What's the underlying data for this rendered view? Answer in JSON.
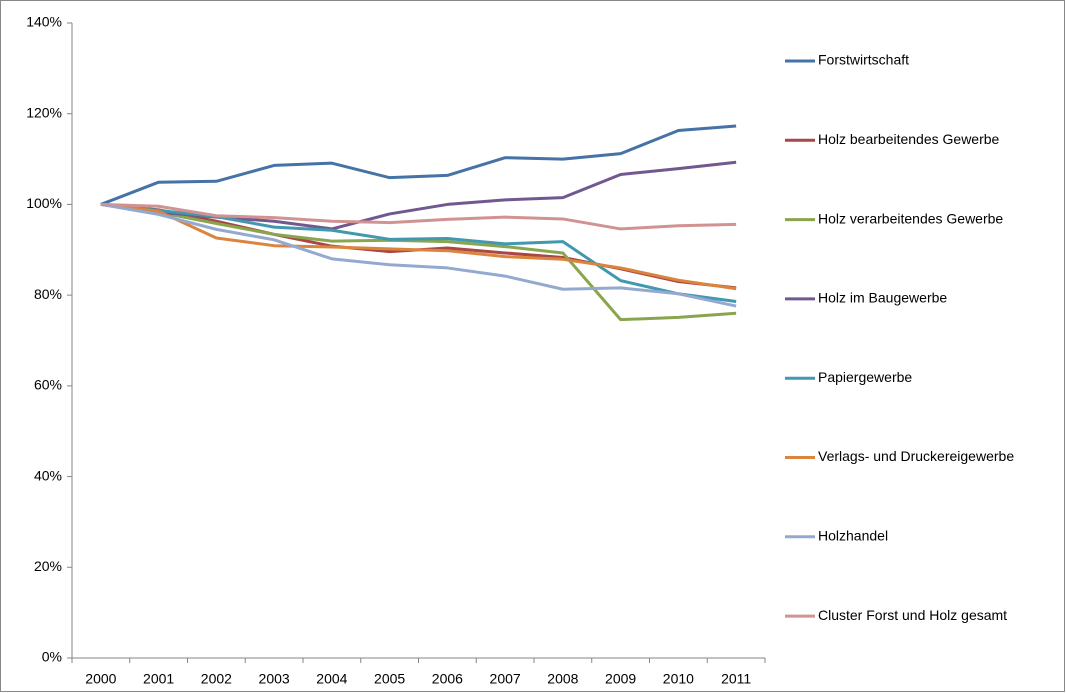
{
  "chart_data": {
    "type": "line",
    "categories": [
      "2000",
      "2001",
      "2002",
      "2003",
      "2004",
      "2005",
      "2006",
      "2007",
      "2008",
      "2009",
      "2010",
      "2011"
    ],
    "series": [
      {
        "name": "Forstwirtschaft",
        "color": "#4572A7",
        "values": [
          100,
          104.9,
          105.1,
          108.6,
          109.1,
          105.9,
          106.4,
          110.3,
          110.0,
          111.2,
          116.3,
          117.3
        ]
      },
      {
        "name": "Holz bearbeitendes Gewerbe",
        "color": "#AA4643",
        "values": [
          100,
          98.8,
          96.3,
          93.4,
          90.8,
          89.6,
          90.4,
          89.3,
          88.3,
          85.8,
          83.0,
          81.6
        ]
      },
      {
        "name": "Holz verarbeitendes Gewerbe",
        "color": "#89A54E",
        "values": [
          100,
          98.3,
          95.8,
          93.4,
          91.9,
          92.1,
          91.8,
          90.7,
          89.3,
          74.6,
          75.1,
          76.0
        ]
      },
      {
        "name": "Holz im Baugewerbe",
        "color": "#71588F",
        "values": [
          100,
          98.3,
          97.2,
          96.3,
          94.6,
          97.9,
          100.0,
          101.0,
          101.5,
          106.6,
          107.9,
          109.3
        ]
      },
      {
        "name": "Papiergewerbe",
        "color": "#4198AF",
        "values": [
          100,
          98.7,
          97.3,
          95.0,
          94.3,
          92.3,
          92.5,
          91.3,
          91.8,
          83.2,
          80.3,
          78.6
        ]
      },
      {
        "name": "Verlags- und Druckereigewerbe",
        "color": "#DB843D",
        "values": [
          100,
          98.5,
          92.6,
          90.9,
          90.6,
          90.2,
          89.8,
          88.5,
          87.9,
          86.0,
          83.3,
          81.4
        ]
      },
      {
        "name": "Holzhandel",
        "color": "#93A9CF",
        "values": [
          100,
          97.8,
          94.5,
          92.2,
          88.0,
          86.7,
          86.0,
          84.2,
          81.3,
          81.6,
          80.3,
          77.6
        ]
      },
      {
        "name": "Cluster Forst und Holz gesamt",
        "color": "#D19392",
        "values": [
          100,
          99.6,
          97.5,
          97.1,
          96.3,
          96.0,
          96.7,
          97.2,
          96.8,
          94.6,
          95.3,
          95.6
        ]
      }
    ],
    "ylim": [
      0,
      140
    ],
    "yticks": [
      {
        "value": 0,
        "label": "0%"
      },
      {
        "value": 20,
        "label": "20%"
      },
      {
        "value": 40,
        "label": "40%"
      },
      {
        "value": 60,
        "label": "60%"
      },
      {
        "value": 80,
        "label": "80%"
      },
      {
        "value": 100,
        "label": "100%"
      },
      {
        "value": 120,
        "label": "120%"
      },
      {
        "value": 140,
        "label": "140%"
      }
    ],
    "legend": "right"
  }
}
